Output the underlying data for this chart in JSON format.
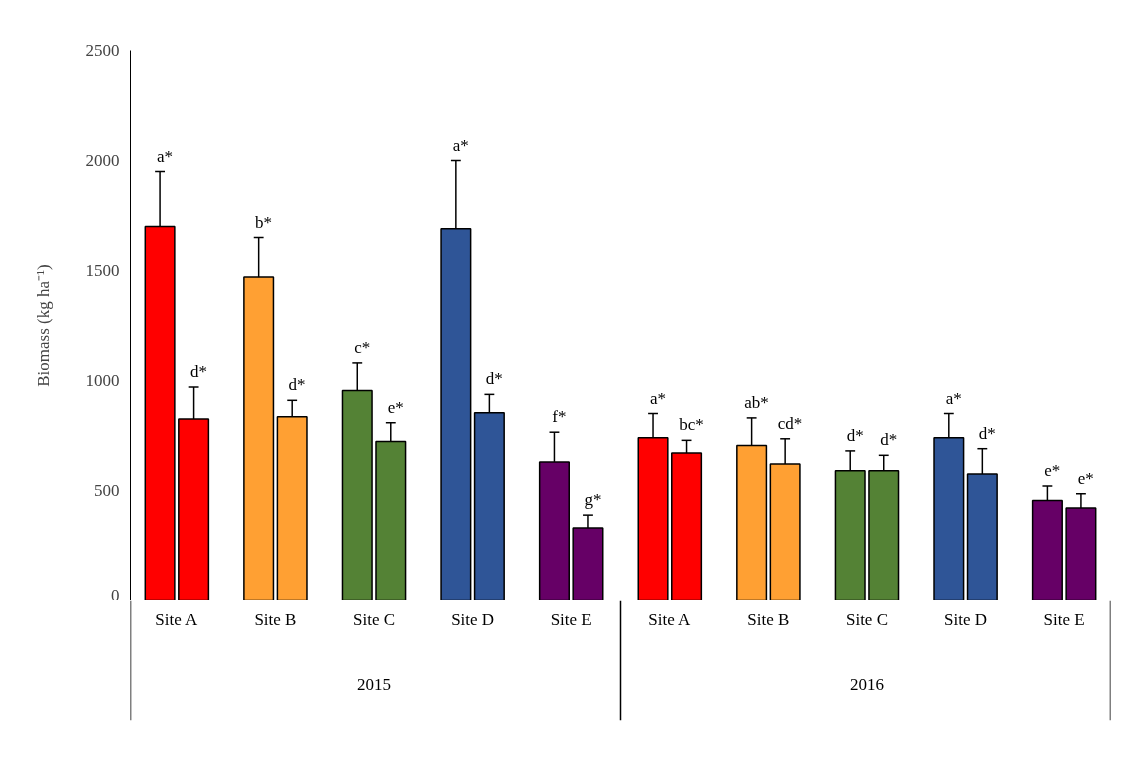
{
  "chart_data": {
    "type": "bar",
    "ylabel": "Biomass (kg ha⁻¹)",
    "categories": [
      "Site A",
      "Site B",
      "Site C",
      "Site D",
      "Site E",
      "Site A",
      "Site B",
      "Site C",
      "Site D",
      "Site E"
    ],
    "series": [
      {
        "colors": [
          "#ff0000",
          "#ffa033",
          "#548235",
          "#2f5597",
          "#660066",
          "#ff0000",
          "#ffa033",
          "#548235",
          "#2f5597",
          "#660066"
        ],
        "values": [
          1700,
          1470,
          955,
          1690,
          630,
          740,
          705,
          590,
          740,
          455
        ],
        "errors": [
          [
            1700,
            1950
          ],
          [
            1470,
            1650
          ],
          [
            955,
            1080
          ],
          [
            1690,
            2000
          ],
          [
            630,
            765
          ],
          [
            740,
            850
          ],
          [
            705,
            830
          ],
          [
            590,
            680
          ],
          [
            740,
            850
          ],
          [
            455,
            520
          ]
        ]
      },
      {
        "colors": [
          "#ff0000",
          "#ffa033",
          "#548235",
          "#2f5597",
          "#660066",
          "#ff0000",
          "#ffa033",
          "#548235",
          "#2f5597",
          "#660066"
        ],
        "values": [
          825,
          835,
          723,
          853,
          330,
          670,
          620,
          590,
          575,
          420
        ],
        "errors": [
          [
            825,
            970
          ],
          [
            835,
            910
          ],
          [
            723,
            808
          ],
          [
            853,
            937
          ],
          [
            330,
            388
          ],
          [
            670,
            728
          ],
          [
            620,
            735
          ],
          [
            590,
            660
          ],
          [
            575,
            690
          ],
          [
            420,
            485
          ]
        ]
      }
    ],
    "ylim": [
      0,
      2500
    ],
    "yticks": [
      0,
      500,
      1000,
      1500,
      2000,
      2500
    ],
    "annotations": [
      "a*",
      "d*",
      "b*",
      "d*",
      "c*",
      "e*",
      "a*",
      "d*",
      "f*",
      "g*",
      "a*",
      "bc*",
      "ab*",
      "cd*",
      "d*",
      "d*",
      "a*",
      "d*",
      "e*",
      "e*",
      "2015",
      "2016"
    ]
  }
}
